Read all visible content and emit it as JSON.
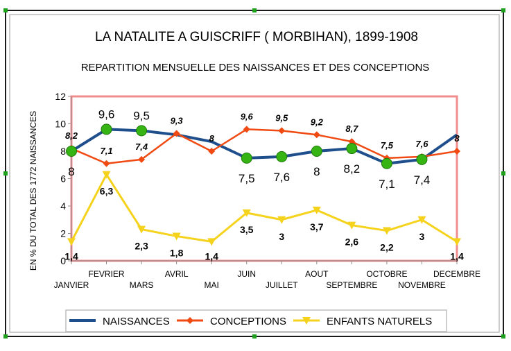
{
  "chart_data": {
    "type": "line",
    "title": "LA NATALITE A GUISCRIFF ( MORBIHAN), 1899-1908",
    "subtitle": "REPARTITION MENSUELLE DES NAISSANCES ET DES CONCEPTIONS",
    "ylabel": "EN % DU TOTAL DES 1772 NAISSANCES",
    "xlabel": "",
    "ylim": [
      0,
      12
    ],
    "yticks": [
      "0",
      "2",
      "4",
      "6",
      "8",
      "10",
      "12"
    ],
    "categories": [
      "JANVIER",
      "FEVRIER",
      "MARS",
      "AVRIL",
      "MAI",
      "JUIN",
      "JUILLET",
      "AOUT",
      "SEPTEMBRE",
      "OCTOBRE",
      "NOVEMBRE",
      "DECEMBRE"
    ],
    "grid": false,
    "legend": "bottom",
    "series": [
      {
        "name": "NAISSANCES",
        "color": "#1f4e8c",
        "values": [
          8,
          9.6,
          9.5,
          9.2,
          8.7,
          7.5,
          7.6,
          8,
          8.2,
          7.1,
          7.4,
          9.2
        ],
        "labels": [
          "8",
          "9,6",
          "9,5",
          "",
          "",
          "7,5",
          "7,6",
          "8",
          "8,2",
          "7,1",
          "7,4",
          ""
        ]
      },
      {
        "name": "CONCEPTIONS",
        "color": "#f04a12",
        "values": [
          8.2,
          7.1,
          7.4,
          9.3,
          8,
          9.6,
          9.5,
          9.2,
          8.7,
          7.5,
          7.6,
          8
        ],
        "labels": [
          "8,2",
          "7,1",
          "7,4",
          "9,3",
          "8",
          "9,6",
          "9,5",
          "9,2",
          "8,7",
          "7,5",
          "7,6",
          "8"
        ]
      },
      {
        "name": "ENFANTS NATURELS",
        "color": "#f5d21c",
        "values": [
          1.4,
          6.3,
          2.3,
          1.8,
          1.4,
          3.5,
          3,
          3.7,
          2.6,
          2.2,
          3,
          1.4
        ],
        "labels": [
          "1,4",
          "6,3",
          "2,3",
          "1,8",
          "1,4",
          "3,5",
          "3",
          "3,7",
          "2,6",
          "2,2",
          "3",
          "1,4"
        ]
      }
    ],
    "colors": {
      "plot_border": "#f08c8c",
      "green_marker": "#35b414",
      "frame": "#7f7f7f"
    }
  }
}
